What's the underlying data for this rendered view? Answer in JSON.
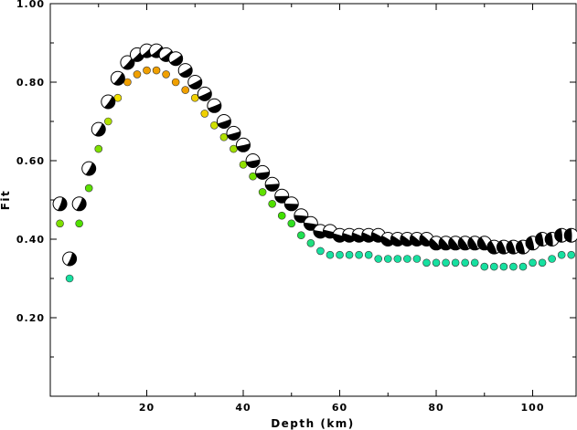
{
  "chart_data": {
    "type": "scatter",
    "title": "",
    "xlabel": "Depth (km)",
    "ylabel": "Fit",
    "xlim": [
      0,
      109
    ],
    "ylim": [
      0.0,
      1.0
    ],
    "x_ticks": [
      "20",
      "40",
      "60",
      "80",
      "100"
    ],
    "y_ticks": [
      "0.20",
      "0.40",
      "0.60",
      "0.80",
      "1.00"
    ],
    "grid": false,
    "legend": "none",
    "series": [
      {
        "kind": "mechanism",
        "x": [
          2,
          4,
          6,
          8,
          10,
          12,
          14,
          16,
          18,
          20,
          22,
          24,
          26,
          28,
          30,
          32,
          34,
          36,
          38,
          40,
          42,
          44,
          46,
          48,
          50,
          52,
          54,
          56,
          58,
          60,
          62,
          64,
          66,
          68,
          70,
          72,
          74,
          76,
          78,
          80,
          82,
          84,
          86,
          88,
          90,
          92,
          94,
          96,
          98,
          100,
          102,
          104,
          106,
          108
        ],
        "values": [
          0.49,
          0.35,
          0.49,
          0.58,
          0.68,
          0.75,
          0.81,
          0.85,
          0.87,
          0.88,
          0.88,
          0.87,
          0.86,
          0.83,
          0.8,
          0.77,
          0.74,
          0.7,
          0.67,
          0.64,
          0.6,
          0.57,
          0.54,
          0.51,
          0.49,
          0.46,
          0.44,
          0.42,
          0.42,
          0.41,
          0.41,
          0.41,
          0.41,
          0.41,
          0.4,
          0.4,
          0.4,
          0.4,
          0.4,
          0.39,
          0.39,
          0.39,
          0.39,
          0.39,
          0.39,
          0.38,
          0.38,
          0.38,
          0.38,
          0.39,
          0.4,
          0.4,
          0.41,
          0.41
        ]
      },
      {
        "kind": "colored-dot",
        "x": [
          2,
          4,
          6,
          8,
          10,
          12,
          14,
          16,
          18,
          20,
          22,
          24,
          26,
          28,
          30,
          32,
          34,
          36,
          38,
          40,
          42,
          44,
          46,
          48,
          50,
          52,
          54,
          56,
          58,
          60,
          62,
          64,
          66,
          68,
          70,
          72,
          74,
          76,
          78,
          80,
          82,
          84,
          86,
          88,
          90,
          92,
          94,
          96,
          98,
          100,
          102,
          104,
          106,
          108
        ],
        "values": [
          0.44,
          0.3,
          0.44,
          0.53,
          0.63,
          0.7,
          0.76,
          0.8,
          0.82,
          0.83,
          0.83,
          0.82,
          0.8,
          0.78,
          0.76,
          0.72,
          0.69,
          0.66,
          0.63,
          0.59,
          0.56,
          0.52,
          0.49,
          0.46,
          0.44,
          0.41,
          0.39,
          0.37,
          0.36,
          0.36,
          0.36,
          0.36,
          0.36,
          0.35,
          0.35,
          0.35,
          0.35,
          0.35,
          0.34,
          0.34,
          0.34,
          0.34,
          0.34,
          0.34,
          0.33,
          0.33,
          0.33,
          0.33,
          0.33,
          0.34,
          0.34,
          0.35,
          0.36,
          0.36
        ],
        "colors": [
          "#7fe000",
          "#17e0a0",
          "#50e000",
          "#5be000",
          "#7fe000",
          "#b0e000",
          "#f0e000",
          "#f0a000",
          "#f0a000",
          "#f0a000",
          "#f0a000",
          "#f0a000",
          "#f0a000",
          "#f0a000",
          "#f0d000",
          "#f0d000",
          "#d0e000",
          "#b0e000",
          "#a0e000",
          "#90e000",
          "#70e000",
          "#60e000",
          "#50e000",
          "#40e000",
          "#30e020",
          "#20e050",
          "#20e080",
          "#17e0a0",
          "#17e0a0",
          "#17e0a0",
          "#17e0a0",
          "#17e0a0",
          "#17e0a0",
          "#17e0a0",
          "#17e0a0",
          "#17e0a0",
          "#17e0a0",
          "#17e0a0",
          "#17e0a0",
          "#17e0a0",
          "#17e0a0",
          "#17e0a0",
          "#17e0a0",
          "#17e0a0",
          "#17e0a0",
          "#17e0a0",
          "#17e0a0",
          "#17e0a0",
          "#17e0a0",
          "#17e0a0",
          "#17e0a0",
          "#17e0a0",
          "#17e0a0",
          "#17e0a0"
        ]
      }
    ]
  }
}
